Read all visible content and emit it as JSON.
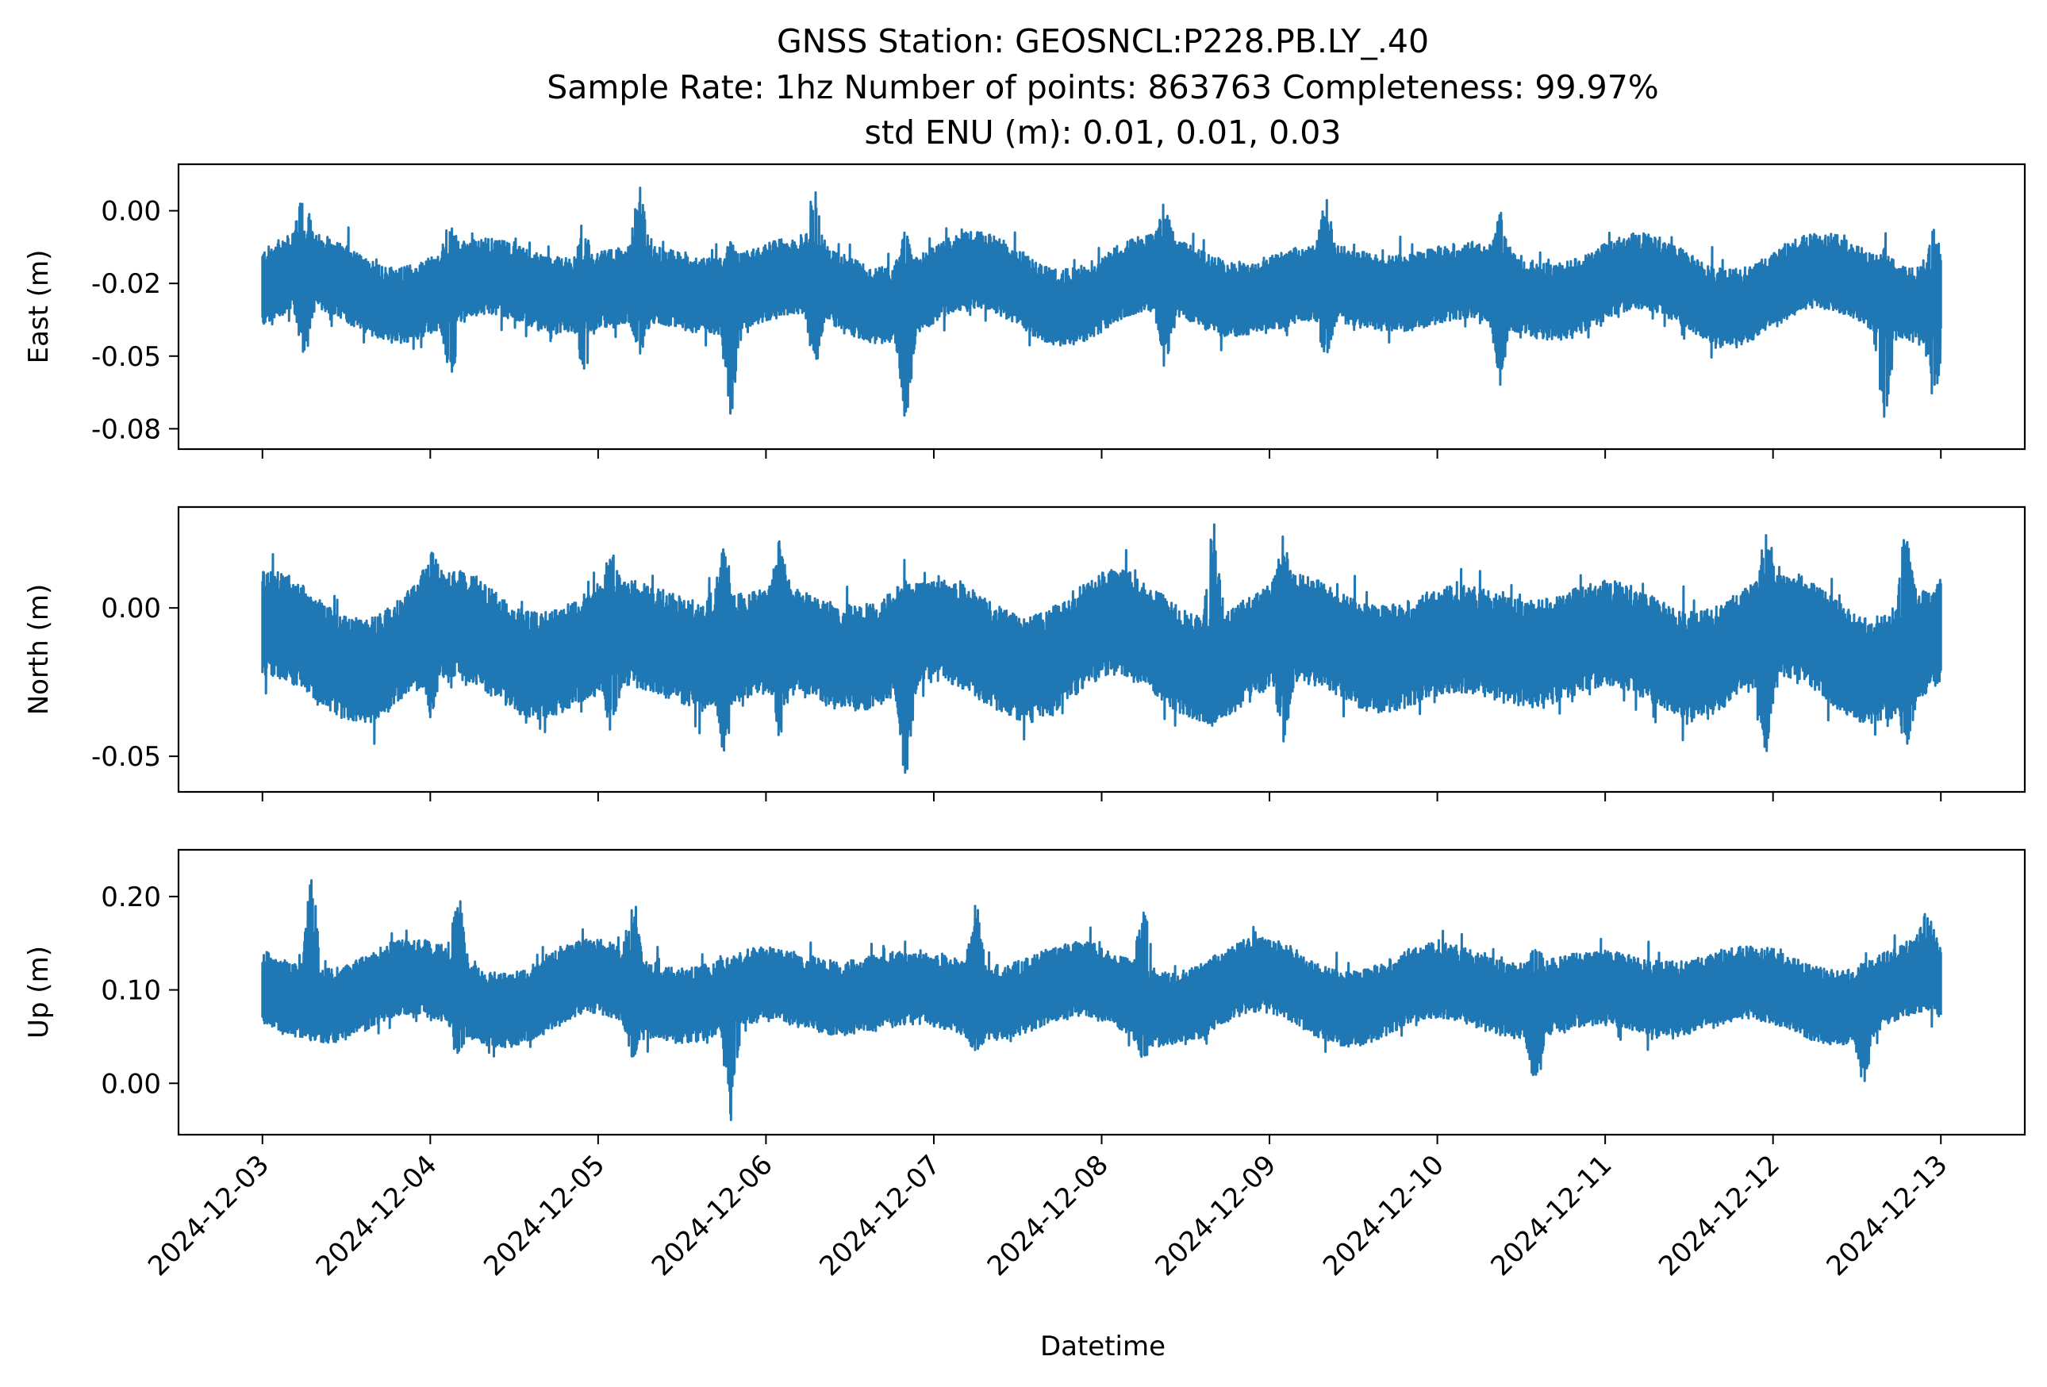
{
  "title_lines": [
    "GNSS Station: GEOSNCL:P228.PB.LY_.40",
    "Sample Rate: 1hz   Number of points: 863763    Completeness:  99.97%",
    "std ENU (m):  0.01, 0.01, 0.03"
  ],
  "colors": {
    "series": "#1f77b4",
    "axes": "#000000",
    "background": "#ffffff"
  },
  "chart_data": {
    "type": "line",
    "shared_x": true,
    "xlabel": "Datetime",
    "x_ticks": [
      "2024-12-03",
      "2024-12-04",
      "2024-12-05",
      "2024-12-06",
      "2024-12-07",
      "2024-12-08",
      "2024-12-09",
      "2024-12-10",
      "2024-12-11",
      "2024-12-12",
      "2024-12-13"
    ],
    "xlim": [
      "2024-12-02T12:00",
      "2024-12-13T12:00"
    ],
    "x_range": [
      "2024-12-03T00:00",
      "2024-12-13T00:00"
    ],
    "grid": false,
    "panels": [
      {
        "ylabel": "East (m)",
        "ylim": [
          -0.082,
          0.016
        ],
        "yticks": [
          0.0,
          -0.025,
          -0.05,
          -0.075
        ],
        "ytick_labels": [
          "0.00",
          "-0.02",
          "-0.05",
          "-0.08"
        ],
        "series": [
          {
            "baseline": -0.028,
            "band_low_offset": -0.01,
            "band_high_offset": 0.012,
            "bursts": [
              {
                "x": "2024-12-03T06:00",
                "max": 0.01,
                "min": -0.055
              },
              {
                "x": "2024-12-04T03:00",
                "max": -0.005,
                "min": -0.062
              },
              {
                "x": "2024-12-04T22:00",
                "max": -0.005,
                "min": -0.058
              },
              {
                "x": "2024-12-05T06:00",
                "max": 0.013,
                "min": -0.05
              },
              {
                "x": "2024-12-05T19:00",
                "max": -0.01,
                "min": -0.073
              },
              {
                "x": "2024-12-06T07:00",
                "max": 0.01,
                "min": -0.055
              },
              {
                "x": "2024-12-06T20:00",
                "max": -0.005,
                "min": -0.076
              },
              {
                "x": "2024-12-08T09:00",
                "max": 0.005,
                "min": -0.055
              },
              {
                "x": "2024-12-09T08:00",
                "max": 0.004,
                "min": -0.055
              },
              {
                "x": "2024-12-10T09:00",
                "max": 0.002,
                "min": -0.06
              },
              {
                "x": "2024-12-12T16:00",
                "max": -0.012,
                "min": -0.08
              },
              {
                "x": "2024-12-12T23:00",
                "max": -0.005,
                "min": -0.068
              }
            ]
          }
        ]
      },
      {
        "ylabel": "North (m)",
        "ylim": [
          -0.062,
          0.034
        ],
        "yticks": [
          0.0,
          -0.05
        ],
        "ytick_labels": [
          "0.00",
          "-0.05"
        ],
        "series": [
          {
            "baseline": -0.013,
            "band_low_offset": -0.015,
            "band_high_offset": 0.015,
            "bursts": [
              {
                "x": "2024-12-04T00:00",
                "max": 0.022,
                "min": -0.04
              },
              {
                "x": "2024-12-05T02:00",
                "max": 0.02,
                "min": -0.045
              },
              {
                "x": "2024-12-05T18:00",
                "max": 0.025,
                "min": -0.052
              },
              {
                "x": "2024-12-06T02:00",
                "max": 0.026,
                "min": -0.045
              },
              {
                "x": "2024-12-06T20:00",
                "max": 0.01,
                "min": -0.061
              },
              {
                "x": "2024-12-08T16:00",
                "max": 0.033,
                "min": -0.04
              },
              {
                "x": "2024-12-09T02:00",
                "max": 0.022,
                "min": -0.05
              },
              {
                "x": "2024-12-11T23:00",
                "max": 0.025,
                "min": -0.055
              },
              {
                "x": "2024-12-12T19:00",
                "max": 0.032,
                "min": -0.048
              }
            ]
          }
        ]
      },
      {
        "ylabel": "Up (m)",
        "ylim": [
          -0.055,
          0.25
        ],
        "yticks": [
          0.2,
          0.1,
          0.0
        ],
        "ytick_labels": [
          "0.20",
          "0.10",
          "0.00"
        ],
        "series": [
          {
            "baseline": 0.095,
            "band_low_offset": -0.032,
            "band_high_offset": 0.035,
            "bursts": [
              {
                "x": "2024-12-03T07:00",
                "max": 0.235,
                "min": 0.05
              },
              {
                "x": "2024-12-04T04:00",
                "max": 0.21,
                "min": 0.02
              },
              {
                "x": "2024-12-05T05:00",
                "max": 0.2,
                "min": 0.02
              },
              {
                "x": "2024-12-05T19:00",
                "max": 0.12,
                "min": -0.04
              },
              {
                "x": "2024-12-07T06:00",
                "max": 0.2,
                "min": 0.03
              },
              {
                "x": "2024-12-08T06:00",
                "max": 0.205,
                "min": 0.02
              },
              {
                "x": "2024-12-10T14:00",
                "max": 0.15,
                "min": -0.01
              },
              {
                "x": "2024-12-12T13:00",
                "max": 0.1,
                "min": -0.01
              },
              {
                "x": "2024-12-12T22:00",
                "max": 0.19,
                "min": 0.08
              }
            ]
          }
        ]
      }
    ]
  }
}
